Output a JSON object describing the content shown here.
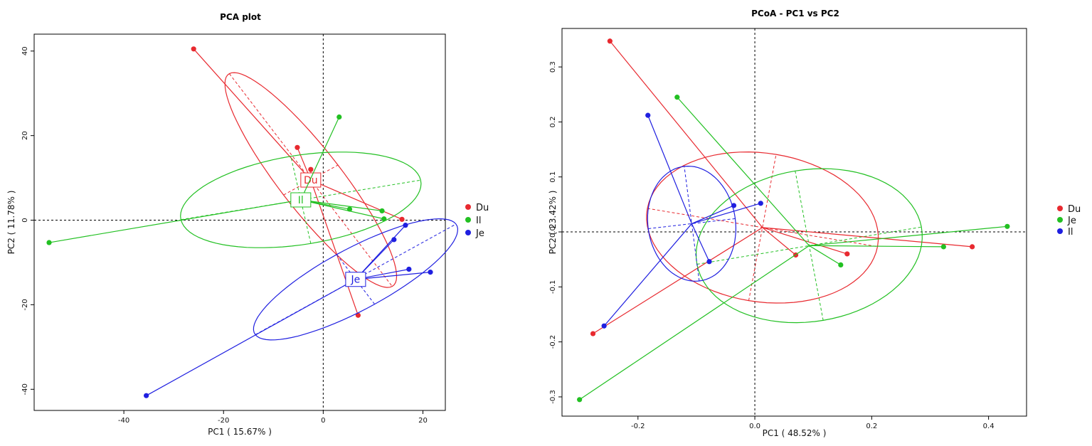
{
  "chart_data": [
    {
      "type": "scatter",
      "title": "PCA plot",
      "xlabel": "PC1 ( 15.67% )",
      "ylabel": "PC2 ( 11.78% )",
      "xlim": [
        -58,
        24.5
      ],
      "ylim": [
        -45,
        44
      ],
      "xticks": [
        -40,
        -20,
        0,
        20
      ],
      "yticks": [
        -40,
        -20,
        0,
        20,
        40
      ],
      "grid": false,
      "zero_lines": true,
      "legend_position": "right",
      "series": [
        {
          "name": "Du",
          "color": "#e8292f",
          "centroid": [
            -2.5,
            9.5
          ],
          "points": [
            [
              -26,
              40.5
            ],
            [
              -5.2,
              17.2
            ],
            [
              -2.5,
              12
            ],
            [
              15.8,
              0.2
            ],
            [
              7,
              -22.5
            ]
          ],
          "ellipse": {
            "center": [
              -2.5,
              9.5
            ],
            "semi_major": 30,
            "semi_minor": 6.5,
            "angle_deg": -57
          }
        },
        {
          "name": "Il",
          "color": "#22c022",
          "centroid": [
            -4.5,
            4.8
          ],
          "points": [
            [
              -55,
              -5.3
            ],
            [
              3.2,
              24.4
            ],
            [
              5.3,
              2.6
            ],
            [
              11.8,
              2.2
            ],
            [
              12.2,
              0.3
            ]
          ],
          "ellipse": {
            "center": [
              -4.5,
              4.8
            ],
            "semi_major": 24.5,
            "semi_minor": 10.5,
            "angle_deg": 11
          }
        },
        {
          "name": "Je",
          "color": "#1f1fe0",
          "centroid": [
            6.5,
            -14
          ],
          "points": [
            [
              -35.5,
              -41.5
            ],
            [
              14.2,
              -4.6
            ],
            [
              16.5,
              -1.2
            ],
            [
              17.2,
              -11.6
            ],
            [
              21.5,
              -12.3
            ]
          ],
          "ellipse": {
            "center": [
              6.5,
              -14
            ],
            "semi_major": 24,
            "semi_minor": 7,
            "angle_deg": 33
          }
        }
      ]
    },
    {
      "type": "scatter",
      "title": "PCoA - PC1 vs PC2",
      "xlabel": "PC1 ( 48.52% )",
      "ylabel": "PC2 ( 23.42% )",
      "xlim": [
        -0.33,
        0.465
      ],
      "ylim": [
        -0.335,
        0.37
      ],
      "xticks": [
        -0.2,
        0.0,
        0.2,
        0.4
      ],
      "yticks": [
        -0.3,
        -0.2,
        -0.1,
        0.0,
        0.1,
        0.2,
        0.3
      ],
      "grid": false,
      "zero_lines": true,
      "legend_position": "right",
      "series": [
        {
          "name": "Du",
          "color": "#e8292f",
          "centroid": [
            0.013,
            0.008
          ],
          "points": [
            [
              -0.248,
              0.347
            ],
            [
              -0.277,
              -0.185
            ],
            [
              0.07,
              -0.042
            ],
            [
              0.158,
              -0.04
            ],
            [
              0.372,
              -0.027
            ]
          ],
          "ellipse": {
            "center": [
              0.013,
              0.008
            ],
            "semi_major": 0.2,
            "semi_minor": 0.135,
            "angle_deg": -10
          }
        },
        {
          "name": "Je",
          "color": "#22c022",
          "centroid": [
            0.093,
            -0.025
          ],
          "points": [
            [
              -0.3,
              -0.305
            ],
            [
              -0.133,
              0.245
            ],
            [
              0.147,
              -0.06
            ],
            [
              0.323,
              -0.027
            ],
            [
              0.432,
              0.01
            ]
          ],
          "ellipse": {
            "center": [
              0.093,
              -0.025
            ],
            "semi_major": 0.195,
            "semi_minor": 0.138,
            "angle_deg": 10
          }
        },
        {
          "name": "Il",
          "color": "#1f1fe0",
          "centroid": [
            -0.108,
            0.015
          ],
          "points": [
            [
              -0.183,
              0.212
            ],
            [
              -0.258,
              -0.171
            ],
            [
              -0.078,
              -0.054
            ],
            [
              -0.036,
              0.048
            ],
            [
              0.01,
              0.052
            ]
          ],
          "ellipse": {
            "center": [
              -0.108,
              0.015
            ],
            "semi_major": 0.105,
            "semi_minor": 0.075,
            "angle_deg": 97
          }
        }
      ]
    }
  ]
}
